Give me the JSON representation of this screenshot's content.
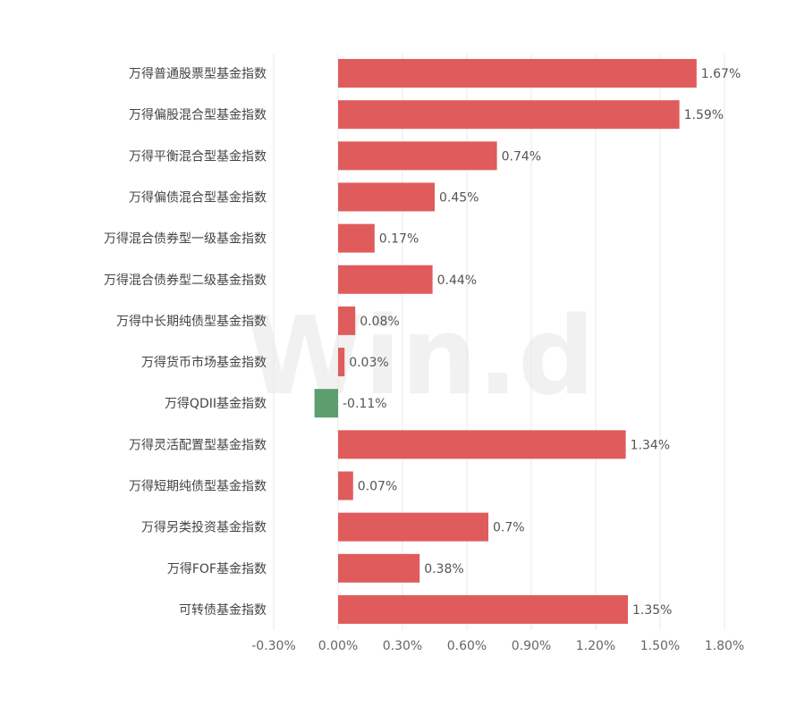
{
  "watermark": "Win.d",
  "chart_data": {
    "type": "bar",
    "orientation": "horizontal",
    "title": "",
    "xlabel": "",
    "ylabel": "",
    "categories": [
      "万得普通股票型基金指数",
      "万得偏股混合型基金指数",
      "万得平衡混合型基金指数",
      "万得偏债混合型基金指数",
      "万得混合债券型一级基金指数",
      "万得混合债券型二级基金指数",
      "万得中长期纯债型基金指数",
      "万得货币市场基金指数",
      "万得QDII基金指数",
      "万得灵活配置型基金指数",
      "万得短期纯债型基金指数",
      "万得另类投资基金指数",
      "万得FOF基金指数",
      "可转债基金指数"
    ],
    "values": [
      1.67,
      1.59,
      0.74,
      0.45,
      0.17,
      0.44,
      0.08,
      0.03,
      -0.11,
      1.34,
      0.07,
      0.7,
      0.38,
      1.35
    ],
    "value_labels": [
      "1.67%",
      "1.59%",
      "0.74%",
      "0.45%",
      "0.17%",
      "0.44%",
      "0.08%",
      "0.03%",
      "-0.11%",
      "1.34%",
      "0.07%",
      "0.7%",
      "0.38%",
      "1.35%"
    ],
    "xlim": [
      -0.3,
      1.8
    ],
    "x_ticks": [
      -0.3,
      0,
      0.3,
      0.6,
      0.9,
      1.2,
      1.5,
      1.8
    ],
    "x_tick_labels": [
      "-0.30%",
      "0.00%",
      "0.30%",
      "0.60%",
      "0.90%",
      "1.20%",
      "1.50%",
      "1.80%"
    ],
    "grid": "vertical",
    "legend": "none",
    "colors": {
      "positive": "#e05c5c",
      "negative": "#5c9e6e",
      "grid": "#e8e8e8",
      "label": "#444444",
      "tick": "#666666"
    }
  }
}
